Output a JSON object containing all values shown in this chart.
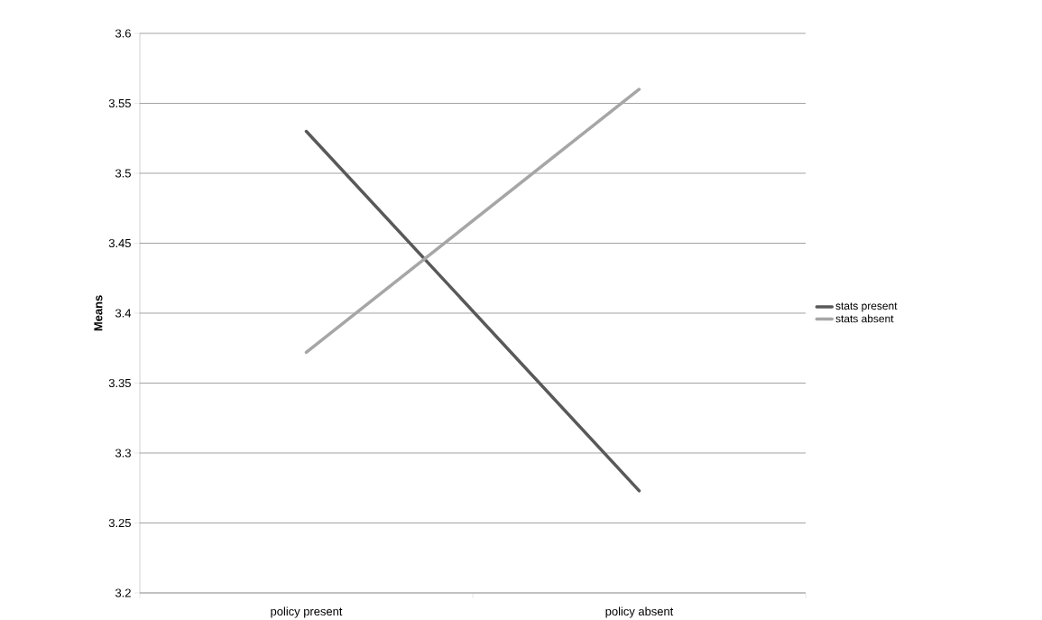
{
  "chart_data": {
    "type": "line",
    "ylabel": "Means",
    "categories": [
      "policy present",
      "policy absent"
    ],
    "series": [
      {
        "name": "stats present",
        "color": "#595959",
        "values": [
          3.53,
          3.273
        ]
      },
      {
        "name": "stats absent",
        "color": "#a6a6a6",
        "values": [
          3.372,
          3.56
        ]
      }
    ],
    "ylim": [
      3.2,
      3.6
    ],
    "yticks": [
      3.2,
      3.25,
      3.3,
      3.35,
      3.4,
      3.45,
      3.5,
      3.55,
      3.6
    ],
    "grid": "y",
    "legend": "right",
    "marker": "none",
    "line_style": "solid"
  }
}
